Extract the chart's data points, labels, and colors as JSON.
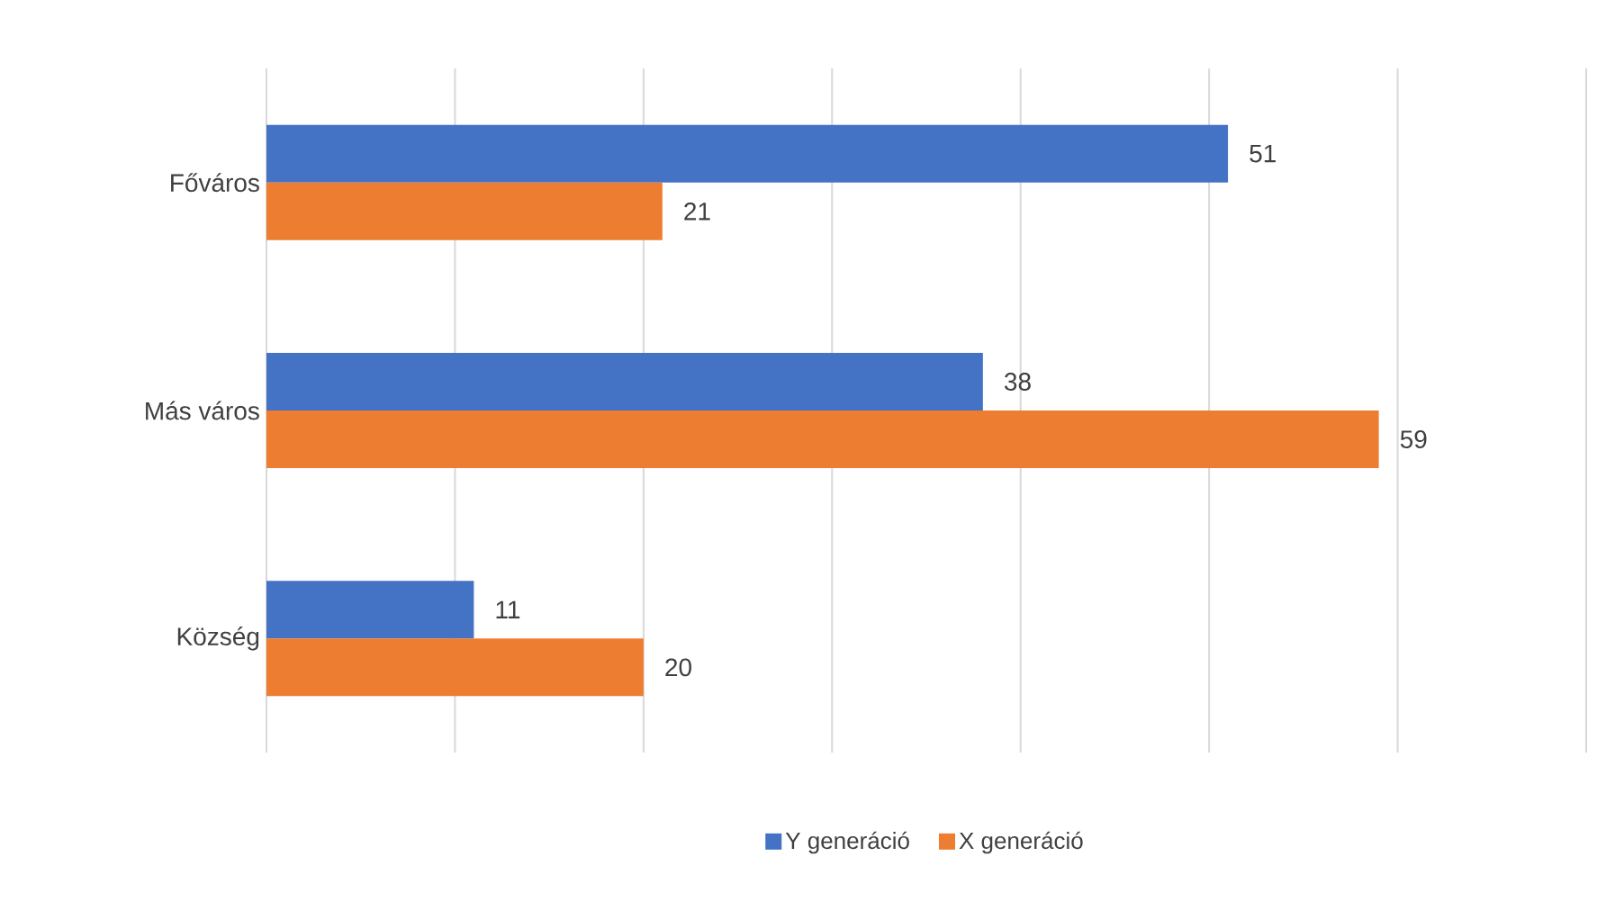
{
  "chart_data": {
    "type": "bar",
    "orientation": "horizontal",
    "categories": [
      "Főváros",
      "Más város",
      "Község"
    ],
    "series": [
      {
        "name": "Y generáció",
        "color": "#4472c4",
        "values": [
          51,
          38,
          11
        ]
      },
      {
        "name": "X generáció",
        "color": "#ed7d31",
        "values": [
          21,
          59,
          20
        ]
      }
    ],
    "xlim": [
      0,
      70
    ],
    "xticks": [
      0,
      10,
      20,
      30,
      40,
      50,
      60,
      70
    ],
    "tick_labels": "y",
    "grid": "x",
    "data_labels": true,
    "legend": "bottom"
  }
}
